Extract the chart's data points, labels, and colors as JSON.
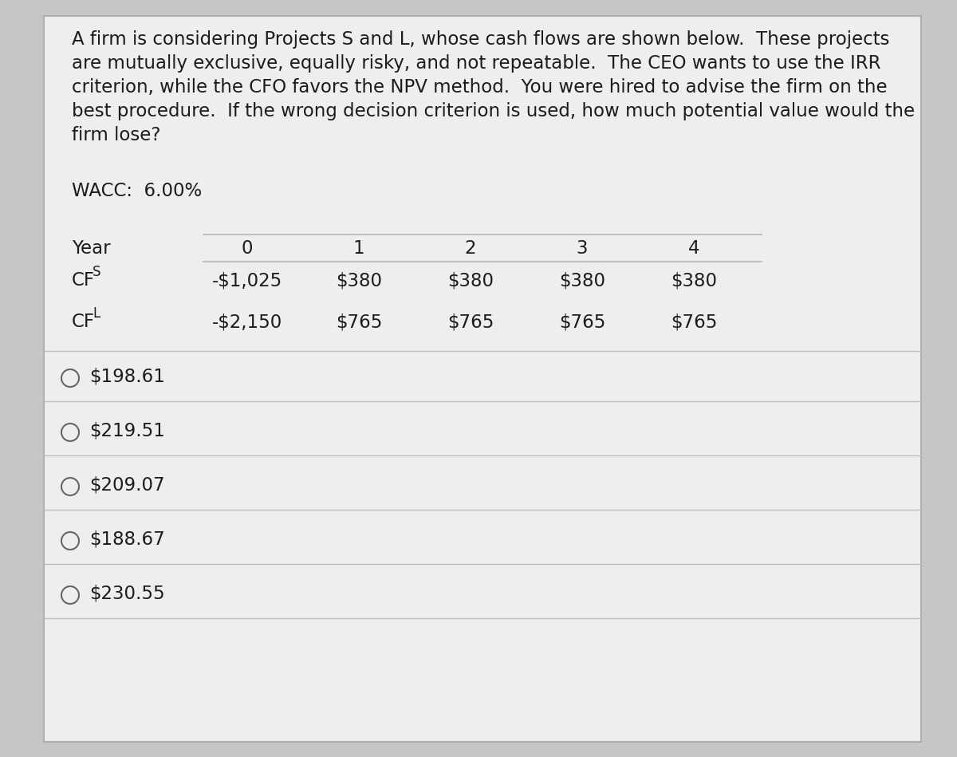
{
  "background_color": "#c8c6c4",
  "inner_bg_color": "#f0eeec",
  "panel_edge_color": "#b0aeac",
  "title_text_lines": [
    "A firm is considering Projects S and L, whose cash flows are shown below.  These projects",
    "are mutually exclusive, equally risky, and not repeatable.  The CEO wants to use the IRR",
    "criterion, while the CFO favors the NPV method.  You were hired to advise the firm on the",
    "best procedure.  If the wrong decision criterion is used, how much potential value would the",
    "firm lose?"
  ],
  "wacc_label": "WACC:  6.00%",
  "table_header_labels": [
    "Year",
    "0",
    "1",
    "2",
    "3",
    "4"
  ],
  "row_cfs_label_base": "CF",
  "row_cfs_label_sub": "S",
  "row_cfl_label_base": "CF",
  "row_cfl_label_sub": "L",
  "row_cfs_values": [
    "-$1,025",
    "$380",
    "$380",
    "$380",
    "$380"
  ],
  "row_cfl_values": [
    "-$2,150",
    "$765",
    "$765",
    "$765",
    "$765"
  ],
  "choices": [
    "$198.61",
    "$219.51",
    "$209.07",
    "$188.67",
    "$230.55"
  ],
  "text_color": "#1c1c1c",
  "divider_color": "#b8b6b4",
  "divider_color_choice": "#c0bebb",
  "circle_edge_color": "#666666",
  "font_size_title": 16.5,
  "font_size_body": 16.5,
  "font_size_sub": 12
}
